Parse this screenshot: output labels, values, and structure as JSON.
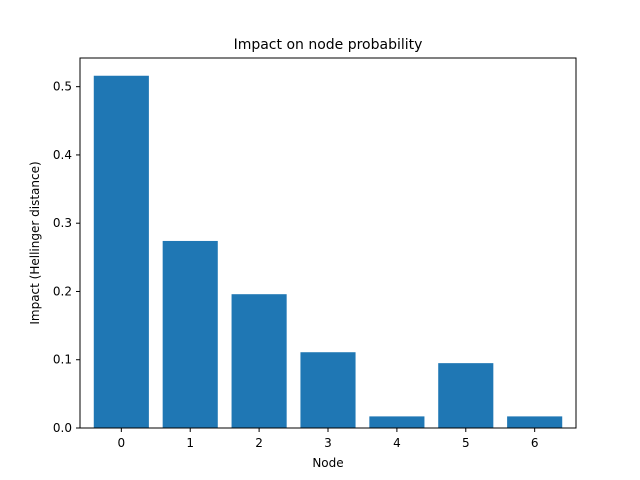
{
  "chart_data": {
    "type": "bar",
    "title": "Impact on node probability",
    "xlabel": "Node",
    "ylabel": "Impact (Hellinger distance)",
    "categories": [
      "0",
      "1",
      "2",
      "3",
      "4",
      "5",
      "6"
    ],
    "values": [
      0.516,
      0.274,
      0.196,
      0.111,
      0.017,
      0.095,
      0.017
    ],
    "ylim": [
      0,
      0.542
    ],
    "yticks": [
      0.0,
      0.1,
      0.2,
      0.3,
      0.4,
      0.5
    ],
    "ytick_labels": [
      "0.0",
      "0.1",
      "0.2",
      "0.3",
      "0.4",
      "0.5"
    ],
    "bar_color": "#1f77b4",
    "grid": false,
    "legend": "none"
  }
}
